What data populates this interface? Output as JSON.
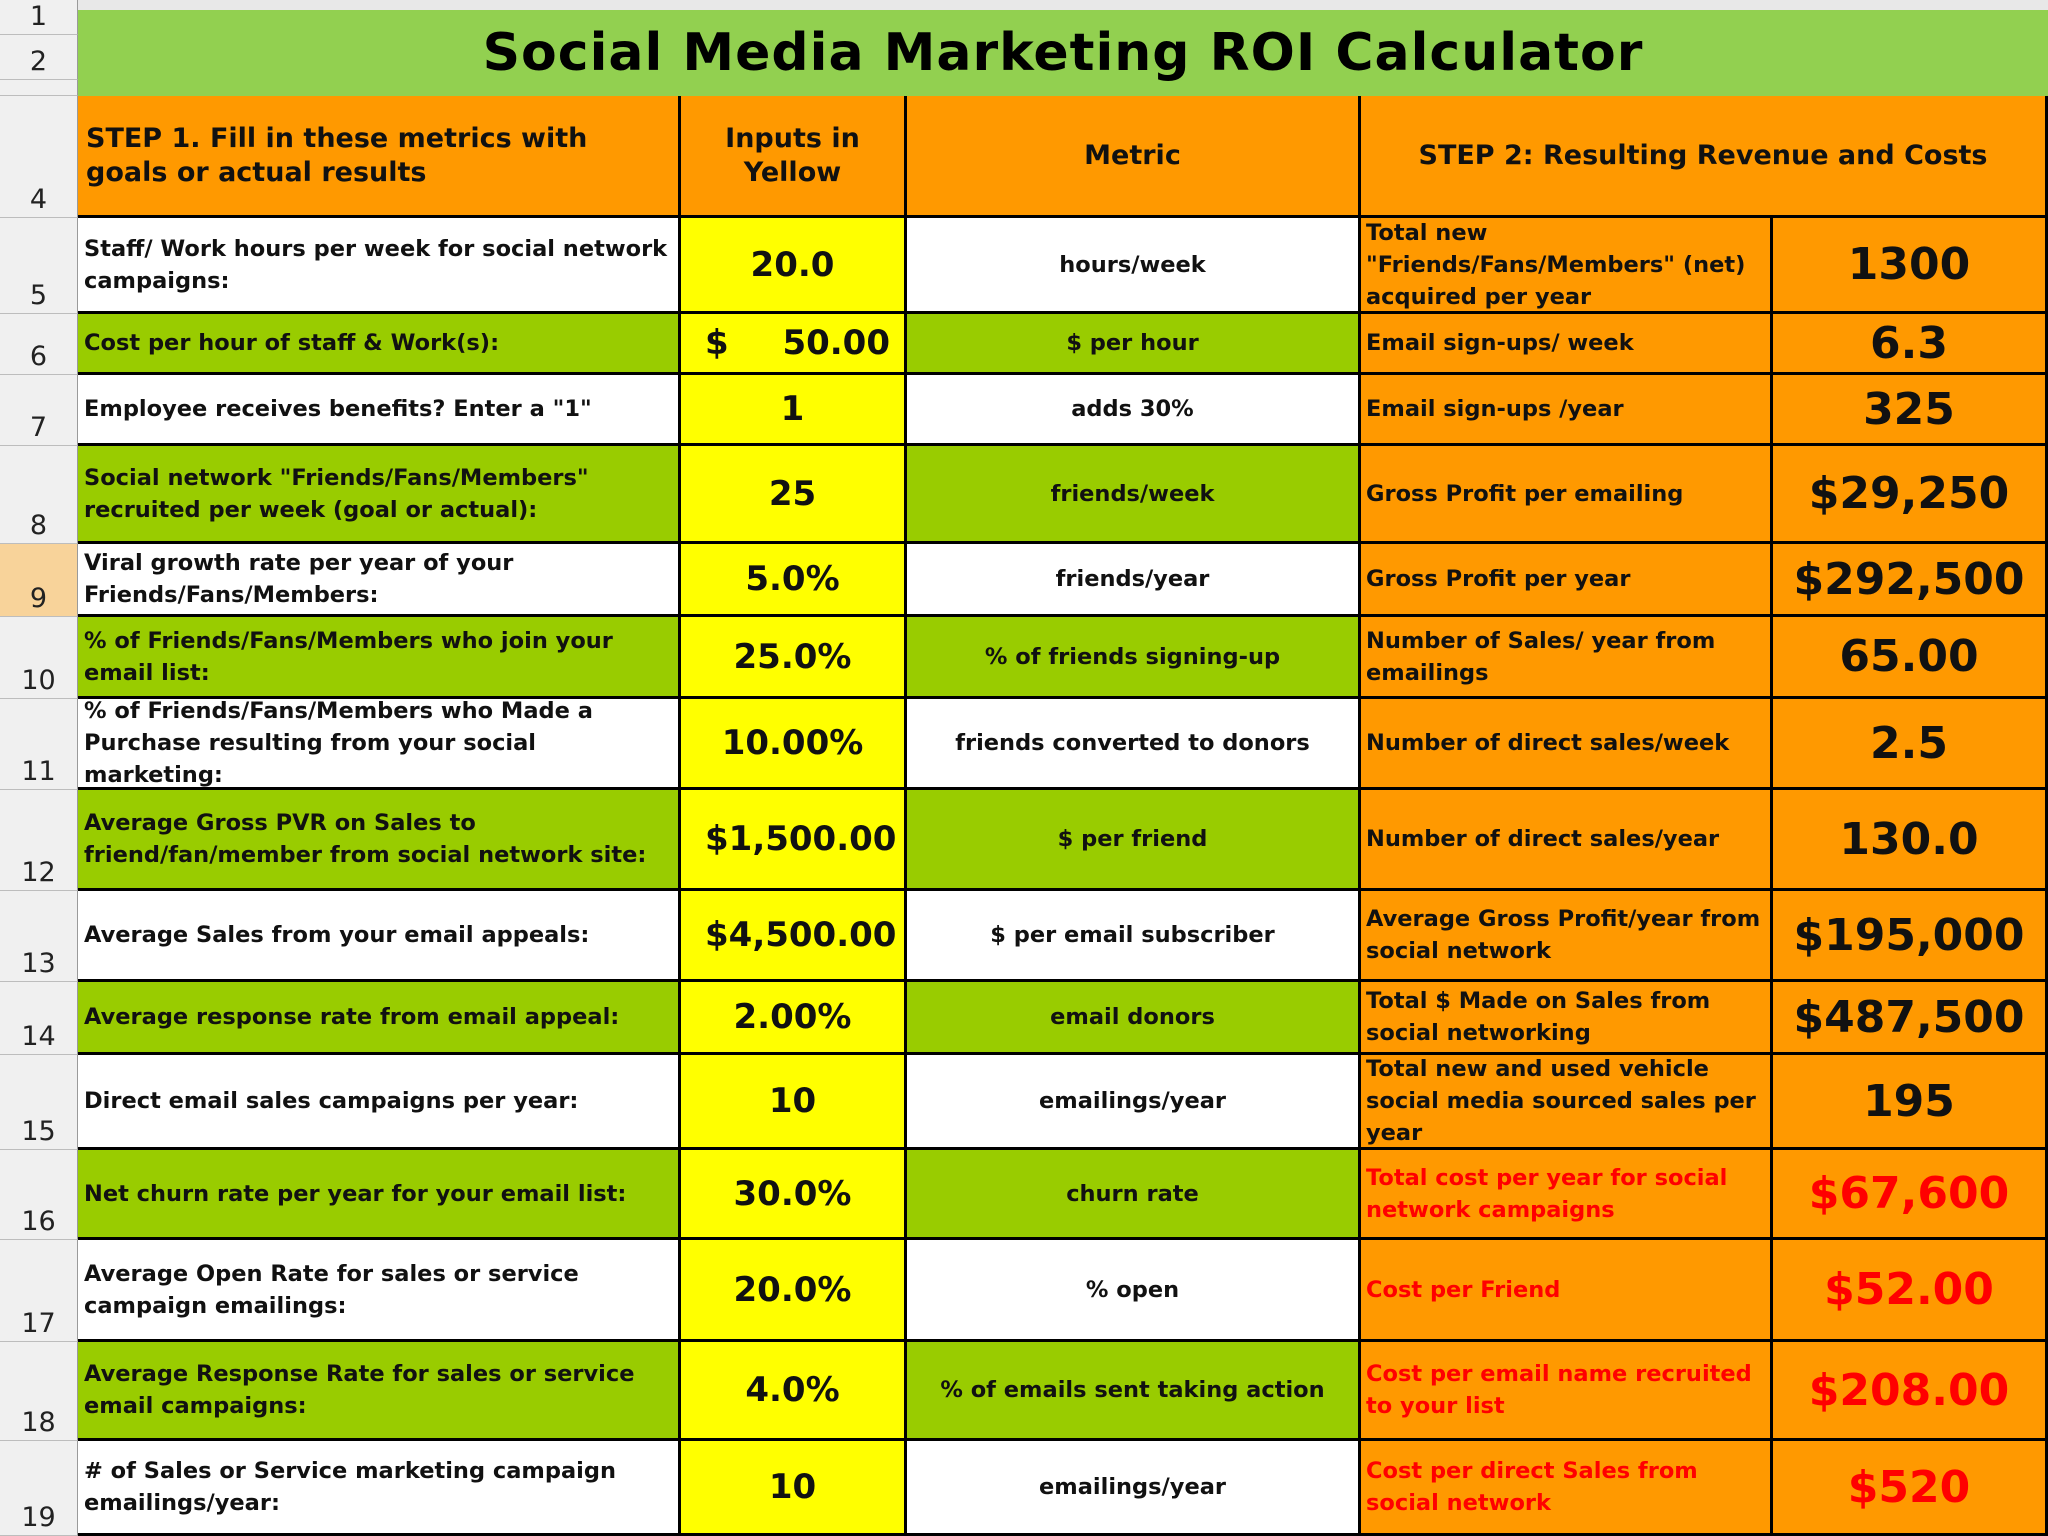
{
  "title": "Social Media Marketing ROI Calculator",
  "headers": {
    "step1": "STEP 1. Fill in these metrics with goals or actual results",
    "inputs": "Inputs in Yellow",
    "metric": "Metric",
    "step2": "STEP 2: Resulting Revenue and Costs"
  },
  "row_numbers": [
    "1",
    "2",
    "4",
    "5",
    "6",
    "7",
    "8",
    "9",
    "10",
    "11",
    "12",
    "13",
    "14",
    "15",
    "16",
    "17",
    "18",
    "19"
  ],
  "rows": [
    {
      "label": "Staff/ Work hours per week for social network campaigns:",
      "input": "20.0",
      "metric": "hours/week",
      "result_label": "Total new \"Friends/Fans/Members\" (net) acquired per year",
      "result_value": "1300",
      "red": false
    },
    {
      "label": "Cost per hour of staff & Work(s):",
      "input_currency": "$",
      "input": "50.00",
      "metric": "$ per hour",
      "result_label": "Email sign-ups/ week",
      "result_value": "6.3",
      "red": false
    },
    {
      "label": "Employee receives benefits?  Enter a \"1\"",
      "input": "1",
      "metric": "adds 30%",
      "result_label": "Email sign-ups /year",
      "result_value": "325",
      "red": false
    },
    {
      "label": "Social network \"Friends/Fans/Members\" recruited per week (goal or actual):",
      "input": "25",
      "metric": "friends/week",
      "result_label": "Gross Profit per emailing",
      "result_value": "$29,250",
      "red": false
    },
    {
      "label": "Viral growth rate per year of your Friends/Fans/Members:",
      "input": "5.0%",
      "metric": "friends/year",
      "result_label": "Gross Profit per year",
      "result_value": "$292,500",
      "red": false
    },
    {
      "label": "% of Friends/Fans/Members who join your email list:",
      "input": "25.0%",
      "metric": "% of friends signing-up",
      "result_label": "Number of Sales/ year from emailings",
      "result_value": "65.00",
      "red": false
    },
    {
      "label": "% of Friends/Fans/Members who Made a Purchase resulting from your social marketing:",
      "input": "10.00%",
      "metric": "friends converted to donors",
      "result_label": "Number of direct sales/week",
      "result_value": "2.5",
      "red": false
    },
    {
      "label": "Average Gross PVR on Sales to friend/fan/member from social network site:",
      "input_currency": "$",
      "input": "1,500.00",
      "metric": "$ per friend",
      "result_label": "Number of direct sales/year",
      "result_value": "130.0",
      "red": false
    },
    {
      "label": "Average Sales from your email appeals:",
      "input_currency": "$",
      "input": "4,500.00",
      "metric": "$ per email subscriber",
      "result_label": "Average Gross Profit/year from social network",
      "result_value": "$195,000",
      "red": false
    },
    {
      "label": "Average response rate from email appeal:",
      "input": "2.00%",
      "metric": "email donors",
      "result_label": "Total $ Made on Sales from social networking",
      "result_value": "$487,500",
      "red": false
    },
    {
      "label": "Direct email sales campaigns per year:",
      "input": "10",
      "metric": "emailings/year",
      "result_label": "Total new and used vehicle social media sourced sales per year",
      "result_value": "195",
      "red": false
    },
    {
      "label": "Net churn rate per year for your email list:",
      "input": "30.0%",
      "metric": "churn rate",
      "result_label": "Total cost per year for social network campaigns",
      "result_value": "$67,600",
      "red": true
    },
    {
      "label": "Average Open Rate for sales or service campaign emailings:",
      "input": "20.0%",
      "metric": "% open",
      "result_label": "Cost per Friend",
      "result_value": "$52.00",
      "red": true
    },
    {
      "label": "Average Response Rate for sales or service email campaigns:",
      "input": "4.0%",
      "metric": "% of emails sent taking action",
      "result_label": "Cost per email name recruited to your list",
      "result_value": "$208.00",
      "red": true
    },
    {
      "label": "# of Sales or Service marketing campaign emailings/year:",
      "input": "10",
      "metric": "emailings/year",
      "result_label": "Cost per direct Sales from social network",
      "result_value": "$520",
      "red": true
    }
  ]
}
